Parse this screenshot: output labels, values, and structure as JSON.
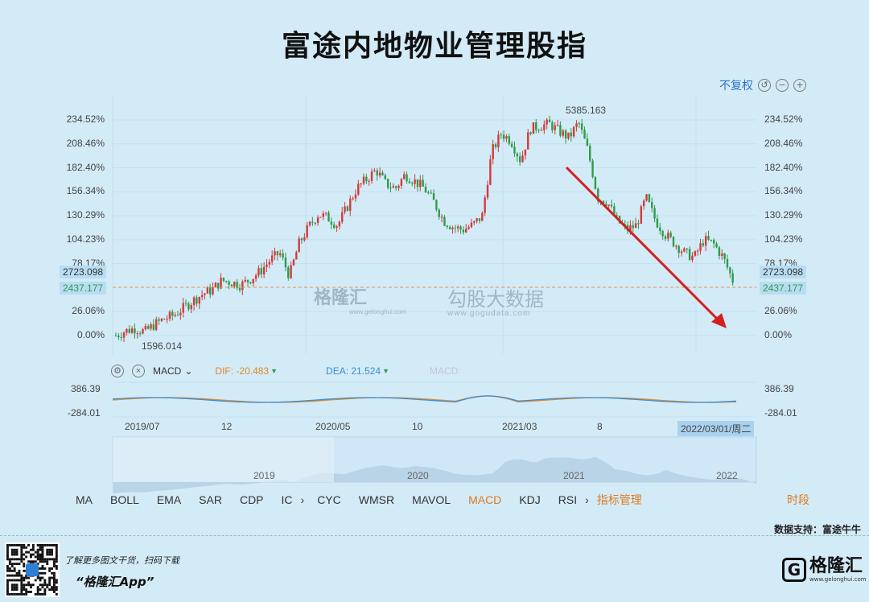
{
  "title": "富途内地物业管理股指",
  "toolbar": {
    "adjust_label": "不复权",
    "icons": [
      "undo-icon",
      "zoom-out-icon",
      "zoom-in-icon"
    ]
  },
  "chart_data": {
    "type": "candlestick",
    "yticks_pct": [
      "234.52%",
      "208.46%",
      "182.40%",
      "156.34%",
      "130.29%",
      "104.23%",
      "78.17%",
      "26.06%",
      "0.00%"
    ],
    "yticks_values": [
      234.52,
      208.46,
      182.4,
      156.34,
      130.29,
      104.23,
      78.17,
      26.06,
      0.0
    ],
    "price_labels": {
      "current": "2723.098",
      "reference": "2437.177"
    },
    "annotations": {
      "high": "5385.163",
      "low": "1596.014"
    },
    "x_ticks": [
      "2019/07",
      "12",
      "2020/05",
      "10",
      "2021/03",
      "8",
      "2022/03/01/周二"
    ],
    "series_close_pct": [
      0,
      5,
      8,
      4,
      12,
      18,
      22,
      30,
      38,
      45,
      50,
      60,
      58,
      55,
      62,
      70,
      82,
      90,
      65,
      100,
      118,
      132,
      128,
      120,
      140,
      160,
      170,
      180,
      165,
      160,
      175,
      168,
      160,
      145,
      125,
      118,
      115,
      120,
      130,
      200,
      220,
      212,
      190,
      225,
      228,
      230,
      222,
      215,
      232,
      200,
      150,
      145,
      125,
      115,
      120,
      150,
      125,
      110,
      100,
      90,
      85,
      104,
      100,
      85,
      60
    ],
    "macd": {
      "label": "MACD",
      "dif_label": "DIF: -20.483",
      "dea_label": "DEA: 21.524",
      "macd_label": "MACD:",
      "yticks": [
        "386.39",
        "-284.01"
      ]
    },
    "overview_years": [
      "2019",
      "2020",
      "2021",
      "2022"
    ]
  },
  "indicators": {
    "left": [
      "MA",
      "BOLL",
      "EMA",
      "SAR",
      "CDP",
      "IC"
    ],
    "right": [
      "CYC",
      "WMSR",
      "MAVOL",
      "MACD",
      "KDJ",
      "RSI"
    ],
    "active": "MACD",
    "manage_label": "指标管理",
    "period_label": "时段"
  },
  "watermark": {
    "brand": "格隆汇",
    "brand_sub": "www.gelonghui.com",
    "partner": "勾股大数据",
    "partner_sub": "www.gogudata.com"
  },
  "footer": {
    "data_source": "数据支持：富途牛牛",
    "promo": "了解更多图文干货，扫码下载",
    "app_name": "“格隆汇App”",
    "logo_text": "格隆汇",
    "logo_sub": "www.gelonghui.com"
  },
  "colors": {
    "up": "#d23b3b",
    "down": "#2f9b4a",
    "dif": "#e08a2a",
    "dea": "#3a8ed6",
    "arrow": "#d41f1f",
    "active": "#e07a1e"
  }
}
